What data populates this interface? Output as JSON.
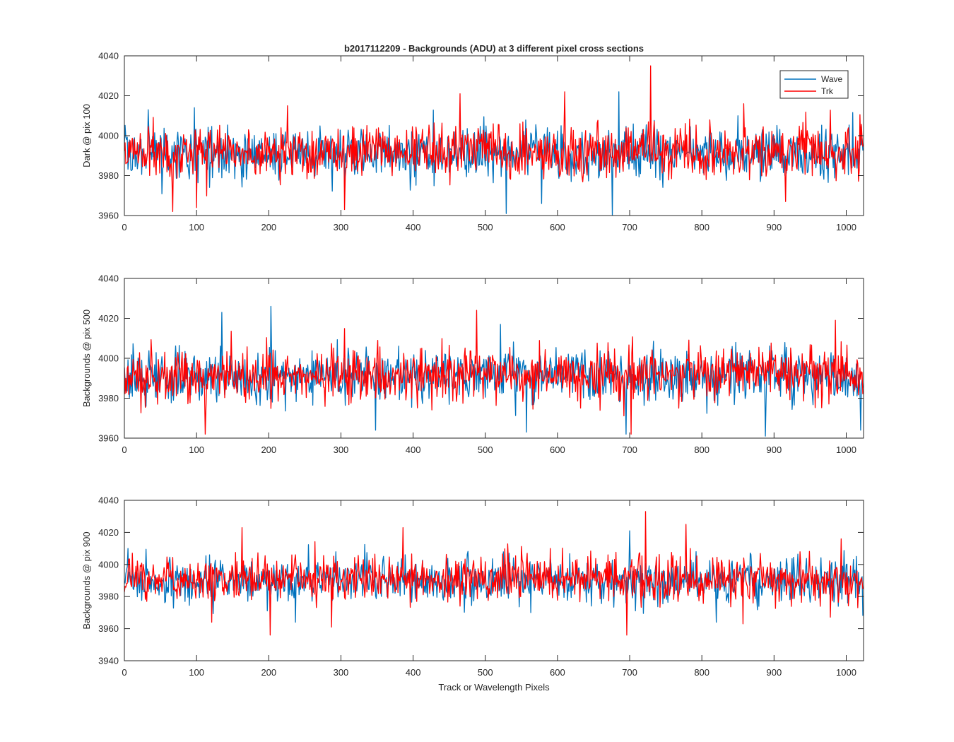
{
  "figure": {
    "title": "b2017112209 - Backgrounds (ADU) at 3 different pixel cross sections",
    "xlabel": "Track or Wavelength Pixels"
  },
  "colors": {
    "wave": "#0072BD",
    "trk": "#FF0000",
    "axis": "#262626"
  },
  "legend": {
    "entries": [
      "Wave",
      "Trk"
    ],
    "placement": "top-right of first panel"
  },
  "chart_data": [
    {
      "type": "line",
      "ylabel": "Dark @ pix 100",
      "xlim": [
        0,
        1024
      ],
      "ylim": [
        3960,
        4040
      ],
      "xticks": [
        0,
        100,
        200,
        300,
        400,
        500,
        600,
        700,
        800,
        900,
        1000
      ],
      "yticks": [
        3960,
        3980,
        4000,
        4020,
        4040
      ],
      "n_points": 1024,
      "series": [
        {
          "name": "Wave",
          "mean": 3991,
          "std": 6.5,
          "spikes": [
            [
              33,
              4013
            ],
            [
              97,
              4014
            ],
            [
              529,
              3961
            ],
            [
              578,
              3966
            ],
            [
              676,
              3960
            ],
            [
              685,
              4022
            ],
            [
              850,
              4010
            ]
          ]
        },
        {
          "name": "Trk",
          "mean": 3992,
          "std": 6.5,
          "spikes": [
            [
              67,
              3962
            ],
            [
              100,
              3964
            ],
            [
              226,
              4015
            ],
            [
              305,
              3963
            ],
            [
              465,
              4021
            ],
            [
              610,
              4022
            ],
            [
              729,
              4035
            ],
            [
              858,
              4016
            ],
            [
              916,
              3967
            ]
          ]
        }
      ]
    },
    {
      "type": "line",
      "ylabel": "Backgrounds @ pix 500",
      "xlim": [
        0,
        1024
      ],
      "ylim": [
        3960,
        4040
      ],
      "xticks": [
        0,
        100,
        200,
        300,
        400,
        500,
        600,
        700,
        800,
        900,
        1000
      ],
      "yticks": [
        3960,
        3980,
        4000,
        4020,
        4040
      ],
      "n_points": 1024,
      "series": [
        {
          "name": "Wave",
          "mean": 3991,
          "std": 6.5,
          "spikes": [
            [
              135,
              4023
            ],
            [
              203,
              4026
            ],
            [
              348,
              3964
            ],
            [
              521,
              4017
            ],
            [
              557,
              3963
            ],
            [
              695,
              3962
            ],
            [
              888,
              3961
            ],
            [
              1020,
              3964
            ]
          ]
        },
        {
          "name": "Trk",
          "mean": 3992,
          "std": 6.5,
          "spikes": [
            [
              112,
              3962
            ],
            [
              488,
              4024
            ],
            [
              702,
              3962
            ],
            [
              985,
              4019
            ]
          ]
        }
      ]
    },
    {
      "type": "line",
      "ylabel": "Backgrounds @ pix 900",
      "xlim": [
        0,
        1024
      ],
      "ylim": [
        3940,
        4040
      ],
      "xticks": [
        0,
        100,
        200,
        300,
        400,
        500,
        600,
        700,
        800,
        900,
        1000
      ],
      "yticks": [
        3940,
        3960,
        3980,
        4000,
        4020,
        4040
      ],
      "n_points": 1024,
      "series": [
        {
          "name": "Wave",
          "mean": 3990,
          "std": 7,
          "spikes": [
            [
              5,
              4010
            ],
            [
              237,
              3964
            ],
            [
              700,
              4021
            ],
            [
              820,
              3964
            ],
            [
              1023,
              3968
            ]
          ]
        },
        {
          "name": "Trk",
          "mean": 3991,
          "std": 7,
          "spikes": [
            [
              121,
              3964
            ],
            [
              163,
              4023
            ],
            [
              202,
              3956
            ],
            [
              287,
              3961
            ],
            [
              386,
              4023
            ],
            [
              696,
              3956
            ],
            [
              722,
              4033
            ],
            [
              778,
              4025
            ],
            [
              857,
              3963
            ],
            [
              993,
              4016
            ]
          ]
        }
      ]
    }
  ]
}
